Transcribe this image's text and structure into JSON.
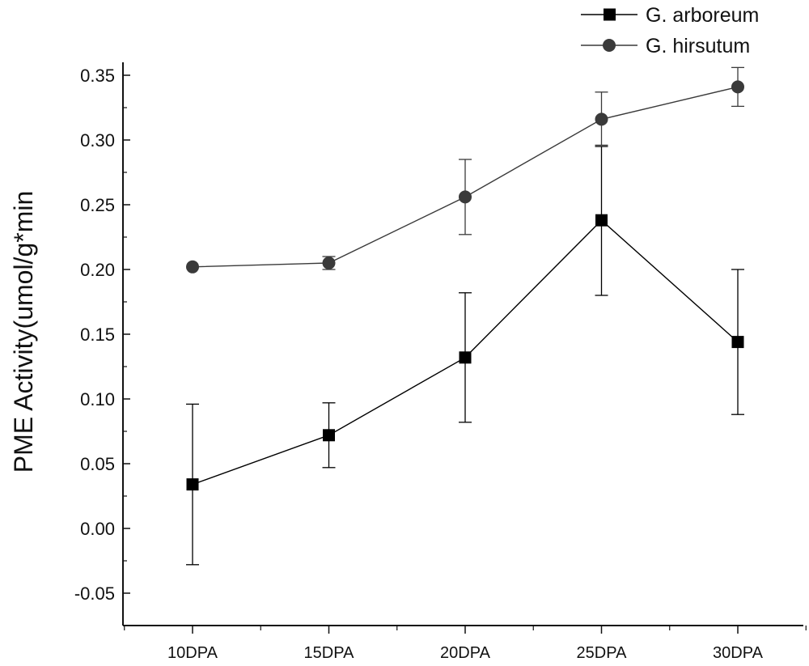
{
  "chart_data": {
    "type": "line",
    "title": "",
    "xlabel": "",
    "ylabel": "PME Activity(umol/g*min",
    "categories": [
      "10DPA",
      "15DPA",
      "20DPA",
      "25DPA",
      "30DPA"
    ],
    "ylim": [
      -0.075,
      0.36
    ],
    "y_ticks": [
      "-0.05",
      "0.00",
      "0.05",
      "0.10",
      "0.15",
      "0.20",
      "0.25",
      "0.30",
      "0.35"
    ],
    "grid": false,
    "legend_position": "top-right",
    "series": [
      {
        "name": "G. arboreum",
        "marker": "square",
        "color": "#000000",
        "values": [
          0.034,
          0.072,
          0.132,
          0.238,
          0.144
        ],
        "err_high": [
          0.096,
          0.097,
          0.182,
          0.295,
          0.2
        ],
        "err_low": [
          -0.028,
          0.047,
          0.082,
          0.18,
          0.088
        ]
      },
      {
        "name": "G. hirsutum",
        "marker": "circle",
        "color": "#3a3a3a",
        "values": [
          0.202,
          0.205,
          0.256,
          0.316,
          0.341
        ],
        "err_high": [
          0.202,
          0.21,
          0.285,
          0.337,
          0.356
        ],
        "err_low": [
          0.202,
          0.2,
          0.227,
          0.296,
          0.326
        ]
      }
    ]
  }
}
